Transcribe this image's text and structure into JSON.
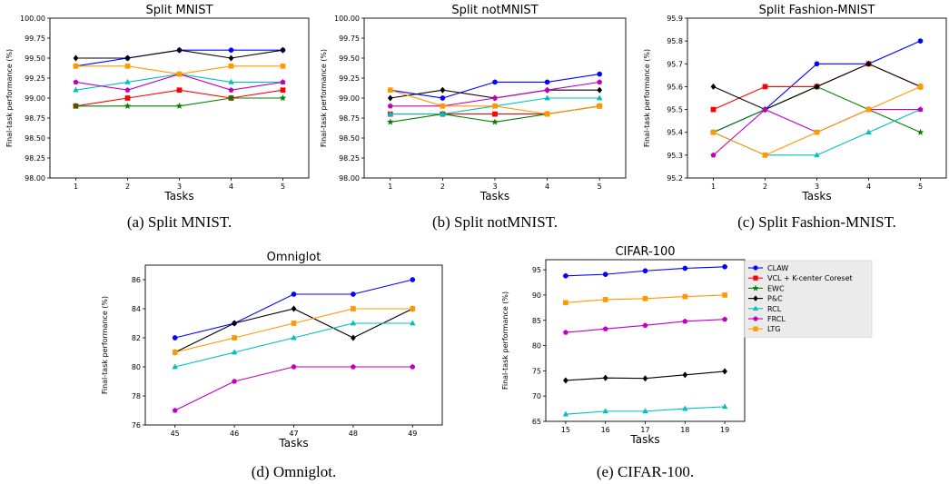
{
  "colors": {
    "CLAW": "#0000ff",
    "VCL + K-center Coreset": "#ff0000",
    "EWC": "#008000",
    "P&C": "#000000",
    "RCL": "#00bfbf",
    "FRCL": "#bf00bf",
    "LTG": "#ff9900"
  },
  "markers": {
    "CLAW": "circle",
    "VCL + K-center Coreset": "square",
    "EWC": "star",
    "P&C": "diamond",
    "RCL": "triangle",
    "FRCL": "pentagon",
    "LTG": "square"
  },
  "legend": {
    "entries": [
      "CLAW",
      "VCL + K-center Coreset",
      "EWC",
      "P&C",
      "RCL",
      "FRCL",
      "LTG"
    ],
    "placement": "outside-right"
  },
  "chart_data": [
    {
      "id": "a",
      "type": "line",
      "title": "Split MNIST",
      "caption": "(a) Split MNIST.",
      "xlabel": "Tasks",
      "ylabel": "Final-task performance (%)",
      "x": [
        1,
        2,
        3,
        4,
        5
      ],
      "xlim": [
        0.5,
        5.5
      ],
      "ylim": [
        98.0,
        100.0
      ],
      "yticks": [
        "98.00",
        "98.25",
        "98.50",
        "98.75",
        "99.00",
        "99.25",
        "99.50",
        "99.75",
        "100.00"
      ],
      "series": [
        {
          "name": "CLAW",
          "values": [
            99.4,
            99.5,
            99.6,
            99.6,
            99.6
          ]
        },
        {
          "name": "VCL + K-center Coreset",
          "values": [
            98.9,
            99.0,
            99.1,
            99.0,
            99.1
          ]
        },
        {
          "name": "EWC",
          "values": [
            98.9,
            98.9,
            98.9,
            99.0,
            99.0
          ]
        },
        {
          "name": "P&C",
          "values": [
            99.5,
            99.5,
            99.6,
            99.5,
            99.6
          ]
        },
        {
          "name": "RCL",
          "values": [
            99.1,
            99.2,
            99.3,
            99.2,
            99.2
          ]
        },
        {
          "name": "FRCL",
          "values": [
            99.2,
            99.1,
            99.3,
            99.1,
            99.2
          ]
        },
        {
          "name": "LTG",
          "values": [
            99.4,
            99.4,
            99.3,
            99.4,
            99.4
          ]
        }
      ]
    },
    {
      "id": "b",
      "type": "line",
      "title": "Split notMNIST",
      "caption": "(b) Split notMNIST.",
      "xlabel": "Tasks",
      "ylabel": "Final-task performance (%)",
      "x": [
        1,
        2,
        3,
        4,
        5
      ],
      "xlim": [
        0.5,
        5.5
      ],
      "ylim": [
        98.0,
        100.0
      ],
      "yticks": [
        "98.00",
        "98.25",
        "98.50",
        "98.75",
        "99.00",
        "99.25",
        "99.50",
        "99.75",
        "100.00"
      ],
      "series": [
        {
          "name": "CLAW",
          "values": [
            99.1,
            99.0,
            99.2,
            99.2,
            99.3
          ]
        },
        {
          "name": "VCL + K-center Coreset",
          "values": [
            98.8,
            98.8,
            98.8,
            98.8,
            98.9
          ]
        },
        {
          "name": "EWC",
          "values": [
            98.7,
            98.8,
            98.7,
            98.8,
            98.9
          ]
        },
        {
          "name": "P&C",
          "values": [
            99.0,
            99.1,
            99.0,
            99.1,
            99.1
          ]
        },
        {
          "name": "RCL",
          "values": [
            98.8,
            98.8,
            98.9,
            99.0,
            99.0
          ]
        },
        {
          "name": "FRCL",
          "values": [
            98.9,
            98.9,
            99.0,
            99.1,
            99.2
          ]
        },
        {
          "name": "LTG",
          "values": [
            99.1,
            98.9,
            98.9,
            98.8,
            98.9
          ]
        }
      ]
    },
    {
      "id": "c",
      "type": "line",
      "title": "Split Fashion-MNIST",
      "caption": "(c) Split Fashion-MNIST.",
      "xlabel": "Tasks",
      "ylabel": "Final-task performance (%)",
      "x": [
        1,
        2,
        3,
        4,
        5
      ],
      "xlim": [
        0.5,
        5.5
      ],
      "ylim": [
        95.2,
        95.9
      ],
      "yticks": [
        "95.2",
        "95.3",
        "95.4",
        "95.5",
        "95.6",
        "95.7",
        "95.8",
        "95.9"
      ],
      "series": [
        {
          "name": "CLAW",
          "values": [
            95.4,
            95.5,
            95.7,
            95.7,
            95.8
          ]
        },
        {
          "name": "VCL + K-center Coreset",
          "values": [
            95.5,
            95.6,
            95.6,
            95.7,
            95.6
          ]
        },
        {
          "name": "EWC",
          "values": [
            95.4,
            95.5,
            95.6,
            95.5,
            95.4
          ]
        },
        {
          "name": "P&C",
          "values": [
            95.6,
            95.5,
            95.6,
            95.7,
            95.6
          ]
        },
        {
          "name": "RCL",
          "values": [
            95.4,
            95.3,
            95.3,
            95.4,
            95.5
          ]
        },
        {
          "name": "FRCL",
          "values": [
            95.3,
            95.5,
            95.4,
            95.5,
            95.5
          ]
        },
        {
          "name": "LTG",
          "values": [
            95.4,
            95.3,
            95.4,
            95.5,
            95.6
          ]
        }
      ]
    },
    {
      "id": "d",
      "type": "line",
      "title": "Omniglot",
      "caption": "(d) Omniglot.",
      "xlabel": "Tasks",
      "ylabel": "Final-task performance (%)",
      "x": [
        45,
        46,
        47,
        48,
        49
      ],
      "xlim": [
        44.5,
        49.5
      ],
      "ylim": [
        76,
        87
      ],
      "yticks": [
        "76",
        "78",
        "80",
        "82",
        "84",
        "86"
      ],
      "series": [
        {
          "name": "CLAW",
          "values": [
            82,
            83,
            85,
            85,
            86
          ]
        },
        {
          "name": "P&C",
          "values": [
            81,
            83,
            84,
            82,
            84
          ]
        },
        {
          "name": "RCL",
          "values": [
            80,
            81,
            82,
            83,
            83
          ]
        },
        {
          "name": "FRCL",
          "values": [
            77,
            79,
            80,
            80,
            80
          ]
        },
        {
          "name": "LTG",
          "values": [
            81,
            82,
            83,
            84,
            84
          ]
        }
      ]
    },
    {
      "id": "e",
      "type": "line",
      "title": "CIFAR-100",
      "caption": "(e) CIFAR-100.",
      "xlabel": "Tasks",
      "ylabel": "Final-task performance (%)",
      "x": [
        15,
        16,
        17,
        18,
        19
      ],
      "xlim": [
        14.5,
        19.5
      ],
      "ylim": [
        65,
        97
      ],
      "yticks": [
        "65",
        "70",
        "75",
        "80",
        "85",
        "90",
        "95"
      ],
      "series": [
        {
          "name": "CLAW",
          "values": [
            93.8,
            94.1,
            94.8,
            95.3,
            95.6
          ]
        },
        {
          "name": "P&C",
          "values": [
            73.1,
            73.6,
            73.5,
            74.2,
            74.9
          ]
        },
        {
          "name": "RCL",
          "values": [
            66.4,
            67.0,
            67.0,
            67.5,
            67.9
          ]
        },
        {
          "name": "FRCL",
          "values": [
            82.6,
            83.3,
            84.0,
            84.8,
            85.2
          ]
        },
        {
          "name": "LTG",
          "values": [
            88.5,
            89.1,
            89.3,
            89.7,
            90.0
          ]
        }
      ]
    }
  ]
}
